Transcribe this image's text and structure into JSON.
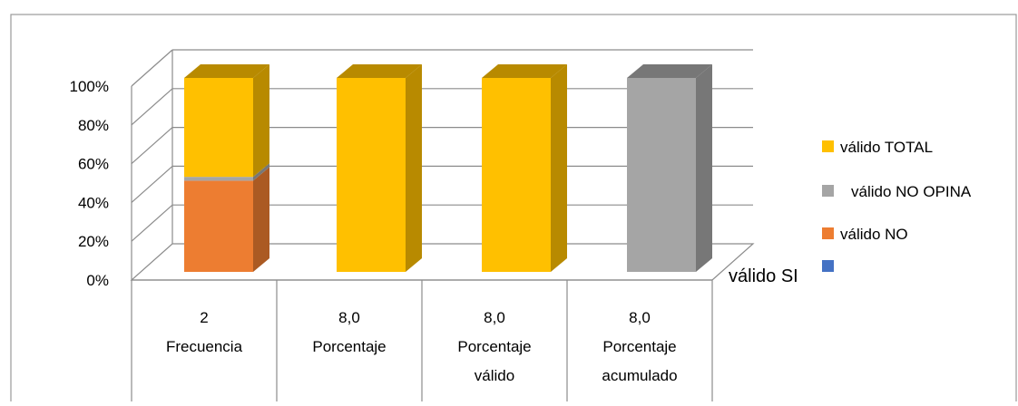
{
  "chart_data": {
    "type": "bar",
    "stacked": true,
    "stacked_percent": true,
    "three_d": true,
    "categories": [
      [
        "2",
        "Frecuencia"
      ],
      [
        "8,0",
        "Porcentaje"
      ],
      [
        "8,0",
        "Porcentaje",
        "válido"
      ],
      [
        "8,0",
        "Porcentaje",
        "acumulado"
      ]
    ],
    "series": [
      {
        "name": "válido SI",
        "values": [
          0,
          0,
          0,
          0
        ],
        "color": "#4472C4"
      },
      {
        "name": "válido NO",
        "values": [
          47,
          0,
          0,
          0
        ],
        "color": "#ED7D31"
      },
      {
        "name": "válido NO OPINA",
        "values": [
          2,
          0,
          0,
          100
        ],
        "color": "#A5A5A5"
      },
      {
        "name": "válido TOTAL",
        "values": [
          51,
          100,
          100,
          0
        ],
        "color": "#FFC000"
      }
    ],
    "y_ticks": [
      "0%",
      "20%",
      "40%",
      "60%",
      "80%",
      "100%"
    ],
    "ylim": [
      0,
      100
    ],
    "grid": true,
    "legend": {
      "placement": "right",
      "entries": [
        "válido TOTAL",
        "válido NO OPINA",
        "válido NO",
        "válido SI"
      ]
    }
  }
}
